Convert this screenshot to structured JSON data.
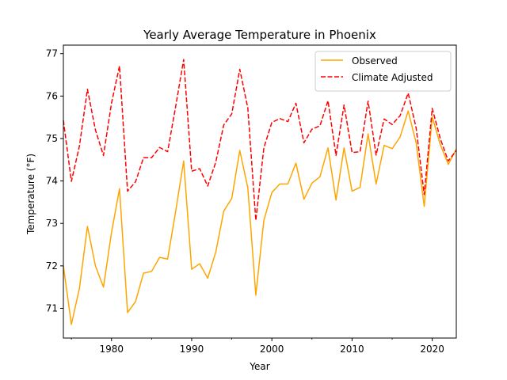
{
  "chart_data": {
    "type": "line",
    "title": "Yearly Average Temperature in Phoenix",
    "xlabel": "Year",
    "ylabel": "Temperature (°F)",
    "xlim": [
      1974,
      2023
    ],
    "ylim": [
      70.3,
      77.2
    ],
    "x_ticks": [
      1980,
      1990,
      2000,
      2010,
      2020
    ],
    "y_ticks": [
      71,
      72,
      73,
      74,
      75,
      76,
      77
    ],
    "x_tick_labels": [
      "1980",
      "1990",
      "2000",
      "2010",
      "2020"
    ],
    "y_tick_labels": [
      "71",
      "72",
      "73",
      "74",
      "75",
      "76",
      "77"
    ],
    "grid": false,
    "legend_position": "top-right",
    "x": [
      1974,
      1975,
      1976,
      1977,
      1978,
      1979,
      1980,
      1981,
      1982,
      1983,
      1984,
      1985,
      1986,
      1987,
      1988,
      1989,
      1990,
      1991,
      1992,
      1993,
      1994,
      1995,
      1996,
      1997,
      1998,
      1999,
      2000,
      2001,
      2002,
      2003,
      2004,
      2005,
      2006,
      2007,
      2008,
      2009,
      2010,
      2011,
      2012,
      2013,
      2014,
      2015,
      2016,
      2017,
      2018,
      2019,
      2020,
      2021,
      2022,
      2023
    ],
    "series": [
      {
        "name": "Observed",
        "color": "#ffa500",
        "dash": "solid",
        "values": [
          72.0,
          70.62,
          71.47,
          72.93,
          72.0,
          71.5,
          72.78,
          73.82,
          70.9,
          71.16,
          71.83,
          71.87,
          72.2,
          72.16,
          73.28,
          74.47,
          71.92,
          72.05,
          71.71,
          72.32,
          73.29,
          73.59,
          74.72,
          73.84,
          71.31,
          73.07,
          73.73,
          73.93,
          73.93,
          74.42,
          73.57,
          73.95,
          74.1,
          74.78,
          73.55,
          74.78,
          73.76,
          73.85,
          75.11,
          73.93,
          74.84,
          74.76,
          75.04,
          75.65,
          74.89,
          73.4,
          75.51,
          74.86,
          74.39,
          74.75
        ]
      },
      {
        "name": "Climate Adjusted",
        "color": "#ff0000",
        "dash": "dashed",
        "values": [
          75.43,
          73.99,
          74.82,
          76.16,
          75.2,
          74.6,
          75.83,
          76.71,
          73.76,
          73.98,
          74.55,
          74.55,
          74.79,
          74.69,
          75.75,
          76.86,
          74.23,
          74.29,
          73.88,
          74.44,
          75.32,
          75.58,
          76.63,
          75.72,
          73.07,
          74.78,
          75.38,
          75.47,
          75.4,
          75.83,
          74.9,
          75.22,
          75.3,
          75.89,
          74.6,
          75.79,
          74.67,
          74.69,
          75.88,
          74.61,
          75.46,
          75.33,
          75.54,
          76.07,
          75.24,
          73.68,
          75.71,
          75.0,
          74.47,
          74.72
        ]
      }
    ]
  }
}
